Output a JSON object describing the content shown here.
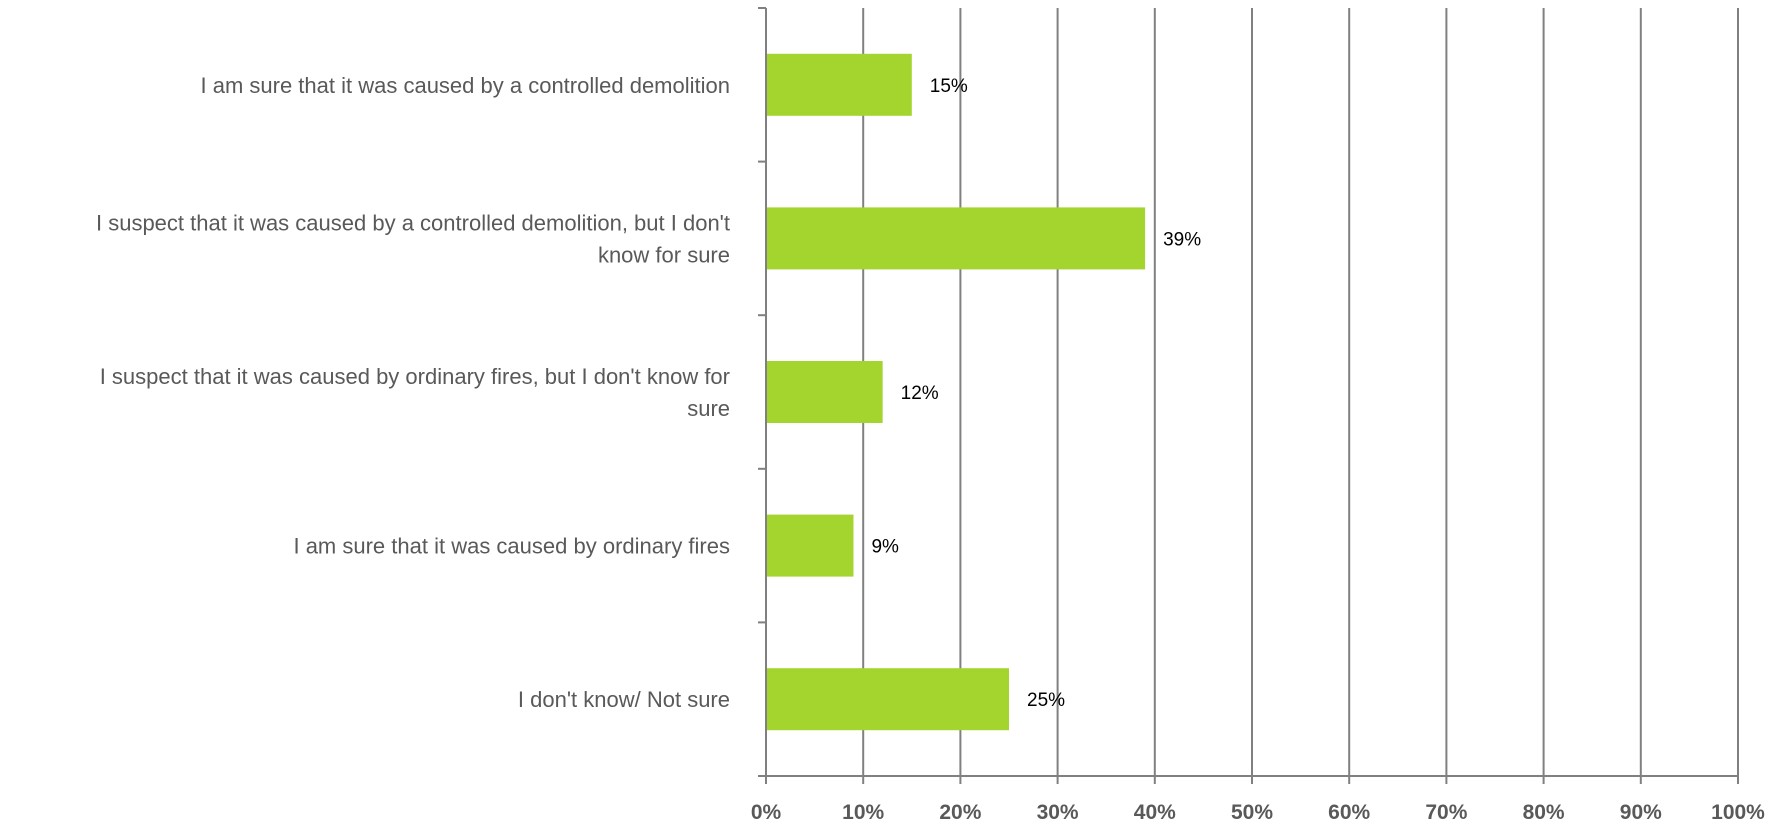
{
  "chart_data": {
    "type": "bar",
    "orientation": "horizontal",
    "categories": [
      "I am sure that it was caused by a controlled demolition",
      "I suspect that it was caused by a controlled demolition, but I don't know for sure",
      "I suspect that it was caused by ordinary fires, but I don't know for sure",
      "I am sure that it was caused by ordinary fires",
      "I don't know/ Not sure"
    ],
    "category_lines": [
      [
        "I am sure that it was caused by a controlled demolition"
      ],
      [
        "I suspect that it was caused by a controlled demolition, but I don't",
        "know for sure"
      ],
      [
        "I suspect that it was caused by ordinary fires, but I don't know for",
        "sure"
      ],
      [
        "I am sure that it was caused by ordinary fires"
      ],
      [
        "I don't know/ Not sure"
      ]
    ],
    "values": [
      15,
      39,
      12,
      9,
      25
    ],
    "data_labels": [
      "15%",
      "39%",
      "12%",
      "9%",
      "25%"
    ],
    "xlim": [
      0,
      100
    ],
    "xticks": [
      0,
      10,
      20,
      30,
      40,
      50,
      60,
      70,
      80,
      90,
      100
    ],
    "xtick_labels": [
      "0%",
      "10%",
      "20%",
      "30%",
      "40%",
      "50%",
      "60%",
      "70%",
      "80%",
      "90%",
      "100%"
    ],
    "grid": true,
    "legend": "none",
    "colors": {
      "bar": "#A4D52F",
      "grid": "#808080",
      "axis": "#808080",
      "category_text": "#595959",
      "tick_text": "#595959",
      "data_label_text": "#000000"
    }
  }
}
